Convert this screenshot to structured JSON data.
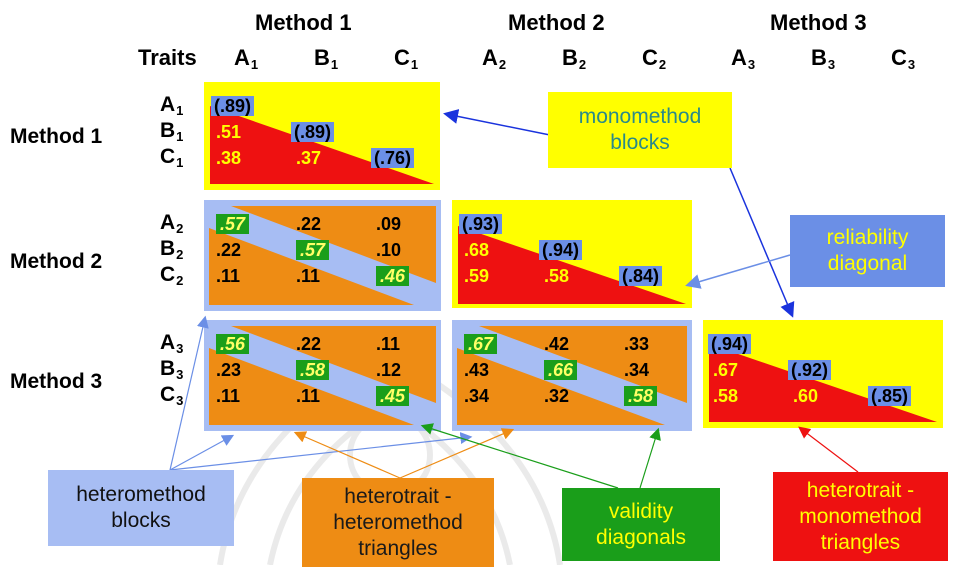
{
  "header": {
    "traits_label": "Traits",
    "methods": [
      "Method 1",
      "Method 2",
      "Method 3"
    ],
    "column_traits": [
      {
        "letter": "A",
        "sub": "1"
      },
      {
        "letter": "B",
        "sub": "1"
      },
      {
        "letter": "C",
        "sub": "1"
      },
      {
        "letter": "A",
        "sub": "2"
      },
      {
        "letter": "B",
        "sub": "2"
      },
      {
        "letter": "C",
        "sub": "2"
      },
      {
        "letter": "A",
        "sub": "3"
      },
      {
        "letter": "B",
        "sub": "3"
      },
      {
        "letter": "C",
        "sub": "3"
      }
    ]
  },
  "rows": {
    "methods": [
      "Method 1",
      "Method 2",
      "Method 3"
    ],
    "traits": [
      {
        "letter": "A",
        "sub": "1"
      },
      {
        "letter": "B",
        "sub": "1"
      },
      {
        "letter": "C",
        "sub": "1"
      },
      {
        "letter": "A",
        "sub": "2"
      },
      {
        "letter": "B",
        "sub": "2"
      },
      {
        "letter": "C",
        "sub": "2"
      },
      {
        "letter": "A",
        "sub": "3"
      },
      {
        "letter": "B",
        "sub": "3"
      },
      {
        "letter": "C",
        "sub": "3"
      }
    ]
  },
  "blocks": {
    "m1": {
      "diag": [
        "(.89)",
        "(.89)",
        "(.76)"
      ],
      "lower": [
        ".51",
        ".38",
        ".37"
      ]
    },
    "m2": {
      "diag": [
        "(.93)",
        "(.94)",
        "(.84)"
      ],
      "lower": [
        ".68",
        ".59",
        ".58"
      ]
    },
    "m3": {
      "diag": [
        "(.94)",
        "(.92)",
        "(.85)"
      ],
      "lower": [
        ".67",
        ".58",
        ".60"
      ]
    },
    "h21": {
      "cells": [
        [
          ".57",
          ".22",
          ".09"
        ],
        [
          ".22",
          ".57",
          ".10"
        ],
        [
          ".11",
          ".11",
          ".46"
        ]
      ]
    },
    "h31": {
      "cells": [
        [
          ".56",
          ".22",
          ".11"
        ],
        [
          ".23",
          ".58",
          ".12"
        ],
        [
          ".11",
          ".11",
          ".45"
        ]
      ]
    },
    "h32": {
      "cells": [
        [
          ".67",
          ".42",
          ".33"
        ],
        [
          ".43",
          ".66",
          ".34"
        ],
        [
          ".34",
          ".32",
          ".58"
        ]
      ]
    }
  },
  "callouts": {
    "monomethod": [
      "monomethod",
      "blocks"
    ],
    "reliability": [
      "reliability",
      "diagonal"
    ],
    "heteromethod": [
      "heteromethod",
      "blocks"
    ],
    "hthm": [
      "heterotrait -",
      "heteromethod",
      "triangles"
    ],
    "validity": [
      "validity",
      "diagonals"
    ],
    "htmm": [
      "heterotrait -",
      "monomethod",
      "triangles"
    ]
  },
  "colors": {
    "yellow": "#ffff00",
    "red": "#ee1111",
    "orange": "#ee8c14",
    "light_blue": "#a7bdf3",
    "reliability_blue": "#6b8fe6",
    "validity_green": "#1a9e1a"
  },
  "icons": [
    "watermark-emblem-icon"
  ]
}
